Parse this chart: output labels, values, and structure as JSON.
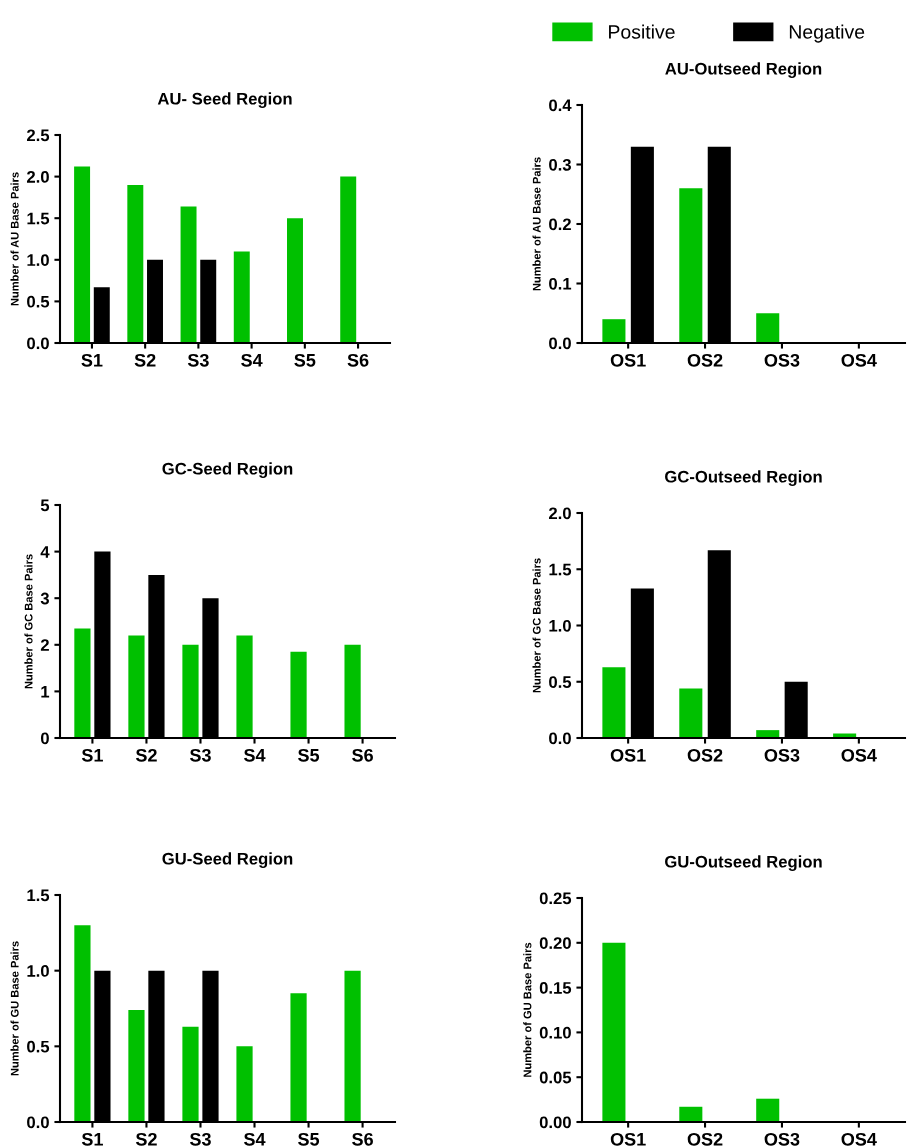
{
  "chart_data": [
    {
      "type": "bar",
      "title": "AU- Seed Region",
      "ylabel": "Number of AU Base Pairs",
      "categories": [
        "S1",
        "S2",
        "S3",
        "S4",
        "S5",
        "S6"
      ],
      "ylim": [
        0,
        2.5
      ],
      "yticks": [
        {
          "value": 0,
          "label": "0.0"
        },
        0.5,
        {
          "value": 1,
          "label": "1.0"
        },
        1.5,
        {
          "value": 2,
          "label": "2.0"
        },
        2.5
      ],
      "grid": false,
      "legend": "top right",
      "series": [
        {
          "name": "Positive",
          "color": "#00c000",
          "values": [
            2.12,
            1.9,
            1.64,
            1.1,
            1.5,
            2.0
          ]
        },
        {
          "name": "Negative",
          "color": "#000000",
          "values": [
            0.67,
            1.0,
            1.0,
            0,
            0,
            0
          ]
        }
      ]
    },
    {
      "type": "bar",
      "title": "AU-Outseed Region",
      "ylabel": "Number of AU Base Pairs",
      "categories": [
        "OS1",
        "OS2",
        "OS3",
        "OS4"
      ],
      "ylim": [
        0,
        0.4
      ],
      "yticks": [
        {
          "value": 0,
          "label": "0.0"
        },
        0.1,
        0.2,
        0.3,
        0.4
      ],
      "grid": false,
      "legend": false,
      "series": [
        {
          "color": "#00c000",
          "values": [
            0.04,
            0.26,
            0.05,
            0
          ]
        },
        {
          "color": "#000000",
          "values": [
            0.33,
            0.33,
            0,
            0
          ]
        }
      ]
    },
    {
      "type": "bar",
      "title": "GC-Seed Region",
      "ylabel": "Number of GC Base Pairs",
      "categories": [
        "S1",
        "S2",
        "S3",
        "S4",
        "S5",
        "S6"
      ],
      "ylim": [
        0,
        5
      ],
      "yticks": [
        0,
        1,
        2,
        3,
        4,
        5
      ],
      "grid": false,
      "legend": false,
      "series": [
        {
          "color": "#00c000",
          "values": [
            2.35,
            2.2,
            2.0,
            2.2,
            1.85,
            2.0
          ]
        },
        {
          "color": "#000000",
          "values": [
            4.0,
            3.5,
            3.0,
            0,
            0,
            0
          ]
        }
      ]
    },
    {
      "type": "bar",
      "title": "GC-Outseed Region",
      "ylabel": "Number of GC Base Pairs",
      "categories": [
        "OS1",
        "OS2",
        "OS3",
        "OS4"
      ],
      "ylim": [
        0,
        2.0
      ],
      "yticks": [
        {
          "value": 0,
          "label": "0.0"
        },
        0.5,
        {
          "value": 1,
          "label": "1.0"
        },
        1.5,
        {
          "value": 2,
          "label": "2.0"
        }
      ],
      "grid": false,
      "legend": false,
      "series": [
        {
          "color": "#00c000",
          "values": [
            0.63,
            0.44,
            0.07,
            0.04
          ]
        },
        {
          "color": "#000000",
          "values": [
            1.33,
            1.67,
            0.5,
            0
          ]
        }
      ]
    },
    {
      "type": "bar",
      "title": "GU-Seed Region",
      "ylabel": "Number of GU Base Pairs",
      "categories": [
        "S1",
        "S2",
        "S3",
        "S4",
        "S5",
        "S6"
      ],
      "ylim": [
        0,
        1.5
      ],
      "yticks": [
        {
          "value": 0,
          "label": "0.0"
        },
        0.5,
        {
          "value": 1,
          "label": "1.0"
        },
        1.5
      ],
      "grid": false,
      "legend": false,
      "series": [
        {
          "color": "#00c000",
          "values": [
            1.3,
            0.74,
            0.63,
            0.5,
            0.85,
            1.0
          ]
        },
        {
          "color": "#000000",
          "values": [
            1.0,
            1.0,
            1.0,
            0,
            0,
            0
          ]
        }
      ]
    },
    {
      "type": "bar",
      "title": "GU-Outseed Region",
      "ylabel": "Number of GU Base Pairs",
      "categories": [
        "OS1",
        "OS2",
        "OS3",
        "OS4"
      ],
      "ylim": [
        0,
        0.25
      ],
      "yticks": [
        {
          "value": 0,
          "label": "0.00"
        },
        {
          "value": 0.05,
          "label": "0.05"
        },
        {
          "value": 0.1,
          "label": "0.10"
        },
        {
          "value": 0.15,
          "label": "0.15"
        },
        {
          "value": 0.2,
          "label": "0.20"
        },
        0.25
      ],
      "grid": false,
      "legend": false,
      "series": [
        {
          "color": "#00c000",
          "values": [
            0.2,
            0.017,
            0.026,
            0
          ]
        },
        {
          "color": "#000000",
          "values": [
            0,
            0,
            0,
            0
          ]
        }
      ]
    }
  ]
}
